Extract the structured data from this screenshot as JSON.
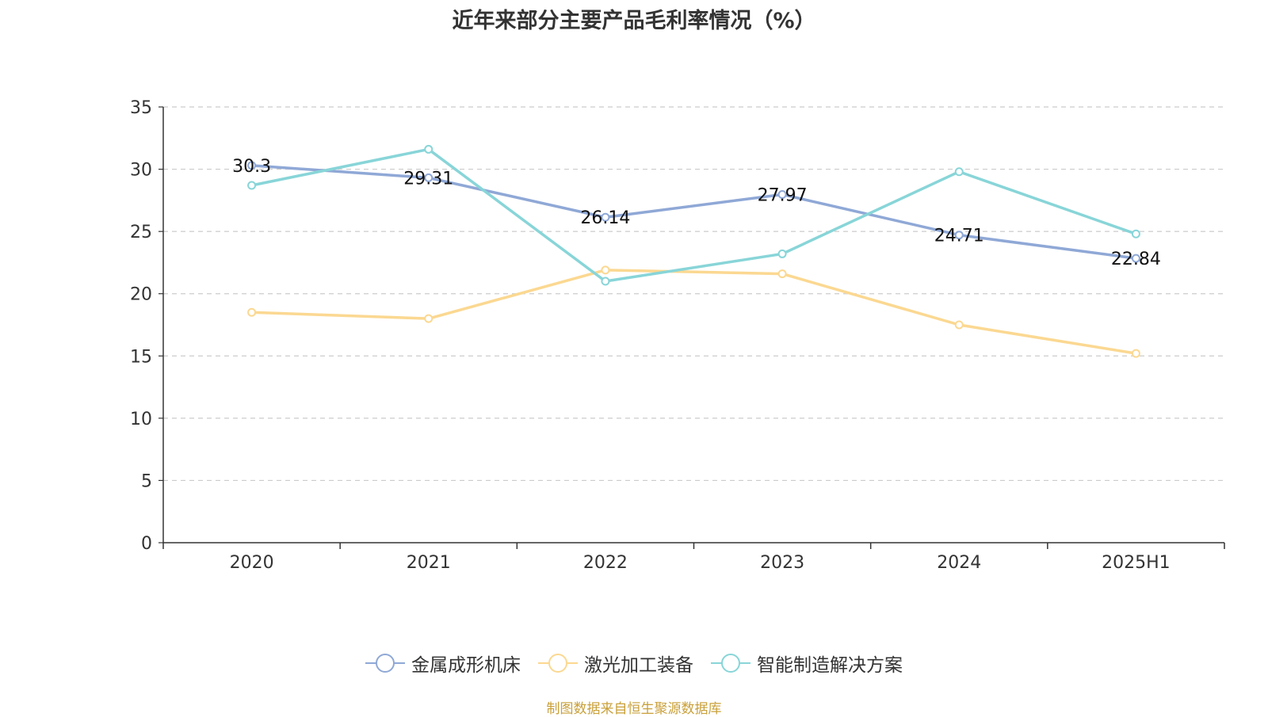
{
  "chart_data": {
    "type": "line",
    "title": "近年来部分主要产品毛利率情况（%）",
    "categories": [
      "2020",
      "2021",
      "2022",
      "2023",
      "2024",
      "2025H1"
    ],
    "ylim": [
      0,
      35
    ],
    "yticks": [
      0,
      5,
      10,
      15,
      20,
      25,
      30,
      35
    ],
    "grid": true,
    "legend_position": "bottom",
    "series": [
      {
        "name": "金属成形机床",
        "color": "#8fa8d6",
        "values": [
          30.3,
          29.31,
          26.14,
          27.97,
          24.71,
          22.84
        ],
        "labels": [
          "30.3",
          "29.31",
          "26.14",
          "27.97",
          "24.71",
          "22.84"
        ],
        "show_labels": true
      },
      {
        "name": "激光加工装备",
        "color": "#fbd891",
        "values": [
          18.5,
          18.0,
          21.9,
          21.6,
          17.5,
          15.2
        ],
        "show_labels": false
      },
      {
        "name": "智能制造解决方案",
        "color": "#88d5d8",
        "values": [
          28.7,
          31.6,
          21.0,
          23.2,
          29.8,
          24.8
        ],
        "show_labels": false
      }
    ]
  },
  "source": {
    "text": "制图数据来自恒生聚源数据库",
    "color": "#c9a03a"
  }
}
